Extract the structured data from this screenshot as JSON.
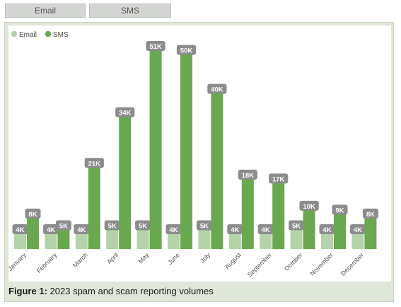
{
  "tabs": [
    {
      "label": "Email",
      "active": false
    },
    {
      "label": "SMS",
      "active": false
    }
  ],
  "caption": {
    "prefix": "Figure 1:",
    "text": "2023 spam and scam reporting volumes"
  },
  "chart_data": {
    "type": "bar",
    "categories": [
      "January",
      "February",
      "March",
      "April",
      "May",
      "June",
      "July",
      "August",
      "September",
      "October",
      "November",
      "December"
    ],
    "series": [
      {
        "name": "Email",
        "color": "#b5d3a8",
        "values": [
          4,
          4,
          4,
          5,
          5,
          4,
          5,
          4,
          4,
          5,
          4,
          4
        ],
        "labels": [
          "4K",
          "4K",
          "4K",
          "5K",
          "5K",
          "4K",
          "5K",
          "4K",
          "4K",
          "5K",
          "4K",
          "4K"
        ]
      },
      {
        "name": "SMS",
        "color": "#6aa84f",
        "values": [
          8,
          5,
          21,
          34,
          51,
          50,
          40,
          18,
          17,
          10,
          9,
          8
        ],
        "labels": [
          "8K",
          "5K",
          "21K",
          "34K",
          "51K",
          "50K",
          "40K",
          "18K",
          "17K",
          "10K",
          "9K",
          "8K"
        ]
      }
    ],
    "value_unit": "K",
    "ylim": [
      0,
      51
    ],
    "legend": "top-left",
    "grid": false,
    "data_label_color": "#8c8c8c"
  }
}
